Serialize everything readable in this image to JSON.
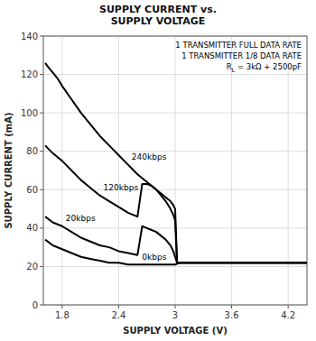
{
  "chart_data": {
    "type": "line",
    "title": "SUPPLY CURRENT vs.\nSUPPLY VOLTAGE",
    "xlabel": "SUPPLY VOLTAGE (V)",
    "ylabel": "SUPPLY CURRENT (mA)",
    "annotations": [
      "1 TRANSMITTER FULL DATA RATE",
      "1 TRANSMITTER 1/8 DATA RATE",
      "R",
      "L",
      " = 3kΩ + 2500pF"
    ],
    "xlim": [
      1.6,
      4.4
    ],
    "ylim": [
      0,
      140
    ],
    "xticks": [
      1.8,
      2.4,
      3.0,
      3.6,
      4.2
    ],
    "yticks": [
      0,
      20,
      40,
      60,
      80,
      100,
      120,
      140
    ],
    "grid": true,
    "series": [
      {
        "name": "240kbps",
        "color": "#000000",
        "x": [
          1.62,
          1.65,
          1.7,
          1.75,
          1.8,
          1.9,
          2.0,
          2.1,
          2.2,
          2.3,
          2.4,
          2.5,
          2.6,
          2.7,
          2.8,
          2.9,
          2.95,
          2.98,
          3.0,
          3.02,
          3.05,
          3.1,
          4.4
        ],
        "values": [
          126,
          124,
          121,
          118,
          114,
          107,
          100,
          94,
          88,
          83,
          78,
          73,
          68,
          64,
          60,
          56,
          54,
          52,
          50,
          22,
          22,
          22,
          22
        ]
      },
      {
        "name": "120kbps",
        "color": "#000000",
        "x": [
          1.62,
          1.7,
          1.8,
          1.9,
          2.0,
          2.1,
          2.2,
          2.3,
          2.4,
          2.5,
          2.6,
          2.65,
          2.7,
          2.75,
          2.8,
          2.85,
          2.9,
          2.95,
          2.98,
          3.0,
          3.02,
          3.05,
          3.1,
          4.4
        ],
        "values": [
          83,
          79,
          75,
          70,
          65,
          61,
          57,
          54,
          51,
          48,
          46,
          63,
          63,
          62,
          60,
          57,
          54,
          50,
          47,
          44,
          22,
          22,
          22,
          22
        ]
      },
      {
        "name": "20kbps",
        "color": "#000000",
        "x": [
          1.62,
          1.7,
          1.8,
          1.9,
          2.0,
          2.1,
          2.2,
          2.3,
          2.4,
          2.5,
          2.6,
          2.65,
          2.7,
          2.75,
          2.8,
          2.85,
          2.9,
          2.95,
          2.98,
          3.0,
          3.02,
          3.05,
          3.1,
          4.4
        ],
        "values": [
          46,
          43,
          41,
          38,
          35,
          33,
          31,
          30,
          28,
          27,
          26,
          41,
          40,
          39,
          38,
          36,
          34,
          31,
          28,
          25,
          22,
          22,
          22,
          22
        ]
      },
      {
        "name": "0kbps",
        "color": "#000000",
        "x": [
          1.62,
          1.7,
          1.8,
          1.9,
          2.0,
          2.1,
          2.2,
          2.3,
          2.4,
          2.5,
          2.6,
          2.7,
          2.8,
          2.9,
          3.0,
          3.05,
          3.1,
          4.4
        ],
        "values": [
          34,
          31,
          29,
          27,
          25,
          24,
          23,
          22,
          22,
          21,
          21,
          21,
          21,
          21,
          21,
          22,
          22,
          22
        ]
      }
    ]
  }
}
